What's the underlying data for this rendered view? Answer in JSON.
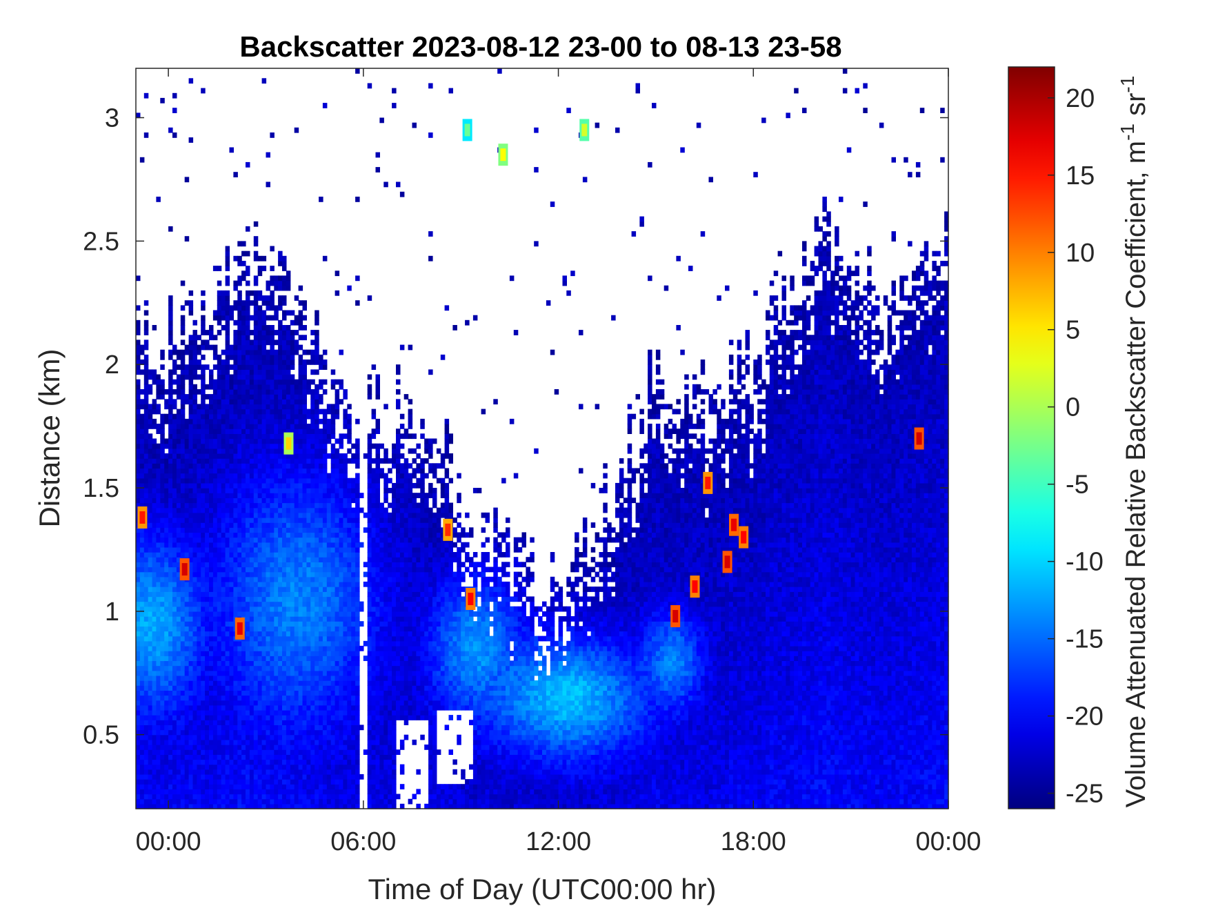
{
  "chart_data": {
    "type": "heatmap",
    "title": "Backscatter 2023-08-12 23-00 to 08-13 23-58",
    "xlabel": "Time of Day (UTC00:00 hr)",
    "ylabel": "Distance (km)",
    "colorbar_label": "Volume Attenuated Relative Backscatter Coefficient, m",
    "colorbar_label_sup1": "-1",
    "colorbar_label_mid": " sr",
    "colorbar_label_sup2": "-1",
    "x_start_hours": -1.0,
    "x_end_hours": 24.0,
    "x_ticks": [
      {
        "hours": 0,
        "label": "00:00"
      },
      {
        "hours": 6,
        "label": "06:00"
      },
      {
        "hours": 12,
        "label": "12:00"
      },
      {
        "hours": 18,
        "label": "18:00"
      },
      {
        "hours": 24,
        "label": "00:00"
      }
    ],
    "ylim": [
      0.2,
      3.2
    ],
    "y_ticks": [
      {
        "value": 0.5,
        "label": "0.5"
      },
      {
        "value": 1,
        "label": "1"
      },
      {
        "value": 1.5,
        "label": "1.5"
      },
      {
        "value": 2,
        "label": "2"
      },
      {
        "value": 2.5,
        "label": "2.5"
      },
      {
        "value": 3,
        "label": "3"
      }
    ],
    "clim": [
      -26,
      22
    ],
    "colorbar_ticks": [
      {
        "value": 20,
        "label": "20"
      },
      {
        "value": 15,
        "label": "15"
      },
      {
        "value": 10,
        "label": "10"
      },
      {
        "value": 5,
        "label": "5"
      },
      {
        "value": 0,
        "label": "0"
      },
      {
        "value": -5,
        "label": "-5"
      },
      {
        "value": -10,
        "label": "-10"
      },
      {
        "value": -15,
        "label": "-15"
      },
      {
        "value": -20,
        "label": "-20"
      },
      {
        "value": -25,
        "label": "-25"
      }
    ],
    "colormap": "jet",
    "boundary_layer_top_km": [
      [
        -1.0,
        2.2
      ],
      [
        0.0,
        2.1
      ],
      [
        1.0,
        2.3
      ],
      [
        2.0,
        2.4
      ],
      [
        3.0,
        2.5
      ],
      [
        4.0,
        2.2
      ],
      [
        5.0,
        2.0
      ],
      [
        6.0,
        1.8
      ],
      [
        7.0,
        1.9
      ],
      [
        8.0,
        1.8
      ],
      [
        9.0,
        1.5
      ],
      [
        10.0,
        1.3
      ],
      [
        11.0,
        1.2
      ],
      [
        12.0,
        1.15
      ],
      [
        13.0,
        1.3
      ],
      [
        14.0,
        1.6
      ],
      [
        15.0,
        2.0
      ],
      [
        16.0,
        1.8
      ],
      [
        17.0,
        1.9
      ],
      [
        18.0,
        2.0
      ],
      [
        19.0,
        2.3
      ],
      [
        20.0,
        2.6
      ],
      [
        21.0,
        2.4
      ],
      [
        22.0,
        2.3
      ],
      [
        23.0,
        2.3
      ],
      [
        24.0,
        2.5
      ]
    ],
    "aerosol_core": [
      {
        "t": -0.5,
        "z": 0.95,
        "width_h": 1.6,
        "depth_km": 0.35,
        "value": -12
      },
      {
        "t": 4.0,
        "z": 1.05,
        "width_h": 2.5,
        "depth_km": 0.5,
        "value": -14
      },
      {
        "t": 9.5,
        "z": 0.85,
        "width_h": 1.5,
        "depth_km": 0.3,
        "value": -13
      },
      {
        "t": 12.3,
        "z": 0.65,
        "width_h": 2.5,
        "depth_km": 0.25,
        "value": -11
      },
      {
        "t": 15.5,
        "z": 0.8,
        "width_h": 1.0,
        "depth_km": 0.2,
        "value": -14
      }
    ],
    "hotspots": [
      {
        "t": 0.5,
        "z": 1.17,
        "value": 18
      },
      {
        "t": 2.2,
        "z": 0.93,
        "value": 17
      },
      {
        "t": -0.8,
        "z": 1.38,
        "value": 15
      },
      {
        "t": 3.7,
        "z": 1.68,
        "value": 6
      },
      {
        "t": 8.6,
        "z": 1.33,
        "value": 14
      },
      {
        "t": 9.3,
        "z": 1.05,
        "value": 16
      },
      {
        "t": 15.6,
        "z": 0.98,
        "value": 18
      },
      {
        "t": 16.2,
        "z": 1.1,
        "value": 16
      },
      {
        "t": 16.6,
        "z": 1.52,
        "value": 15
      },
      {
        "t": 17.2,
        "z": 1.2,
        "value": 18
      },
      {
        "t": 17.4,
        "z": 1.35,
        "value": 17
      },
      {
        "t": 17.7,
        "z": 1.3,
        "value": 16
      },
      {
        "t": 23.1,
        "z": 1.7,
        "value": 18
      },
      {
        "t": 12.8,
        "z": 2.95,
        "value": 2
      },
      {
        "t": 10.3,
        "z": 2.85,
        "value": 4
      },
      {
        "t": 9.2,
        "z": 2.95,
        "value": -3
      }
    ],
    "clear_regions": [
      {
        "t0": 7.0,
        "t1": 8.0,
        "z0": 0.2,
        "z1": 0.55
      },
      {
        "t0": 8.3,
        "t1": 9.4,
        "z0": 0.3,
        "z1": 0.6
      },
      {
        "t0": 5.9,
        "t1": 6.1,
        "z0": 0.2,
        "z1": 3.2
      }
    ],
    "grid": false
  }
}
